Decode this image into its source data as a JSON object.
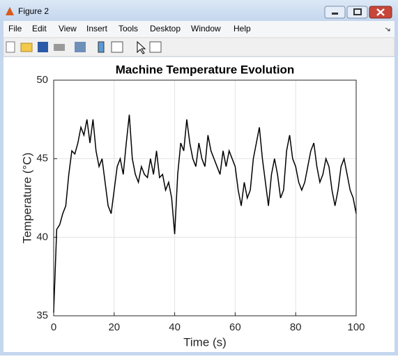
{
  "window": {
    "title": "Figure 2",
    "menu": [
      "File",
      "Edit",
      "View",
      "Insert",
      "Tools",
      "Desktop",
      "Window",
      "Help"
    ]
  },
  "chart_data": {
    "type": "line",
    "title": "Machine Temperature Evolution",
    "xlabel": "Time (s)",
    "ylabel": "Temperature (°C)",
    "x": [
      0,
      1,
      2,
      3,
      4,
      5,
      6,
      7,
      8,
      9,
      10,
      11,
      12,
      13,
      14,
      15,
      16,
      17,
      18,
      19,
      20,
      21,
      22,
      23,
      24,
      25,
      26,
      27,
      28,
      29,
      30,
      31,
      32,
      33,
      34,
      35,
      36,
      37,
      38,
      39,
      40,
      41,
      42,
      43,
      44,
      45,
      46,
      47,
      48,
      49,
      50,
      51,
      52,
      53,
      54,
      55,
      56,
      57,
      58,
      59,
      60,
      61,
      62,
      63,
      64,
      65,
      66,
      67,
      68,
      69,
      70,
      71,
      72,
      73,
      74,
      75,
      76,
      77,
      78,
      79,
      80,
      81,
      82,
      83,
      84,
      85,
      86,
      87,
      88,
      89,
      90,
      91,
      92,
      93,
      94,
      95,
      96,
      97,
      98,
      99,
      100
    ],
    "values": [
      35.2,
      40.5,
      40.8,
      41.5,
      42,
      44,
      45.5,
      45.3,
      46,
      47,
      46.5,
      47.5,
      46,
      47.5,
      45.5,
      44.5,
      45,
      43.5,
      42,
      41.5,
      43,
      44.5,
      45,
      44,
      46,
      47.8,
      45,
      44,
      43.5,
      44.5,
      44,
      43.8,
      45,
      44,
      45.5,
      43.8,
      44,
      43,
      43.5,
      42.5,
      40.2,
      44,
      46,
      45.5,
      47.5,
      46,
      45,
      44.5,
      46,
      45,
      44.5,
      46.5,
      45.5,
      45,
      44.5,
      44,
      45.5,
      44.5,
      45.5,
      45,
      44.5,
      43,
      42,
      43.5,
      42.5,
      43,
      45,
      46,
      47,
      45,
      43.5,
      42,
      44,
      45,
      44,
      42.5,
      43,
      45.5,
      46.5,
      45,
      44.5,
      43.5,
      43,
      43.5,
      44.5,
      45.5,
      46,
      44.5,
      43.5,
      44,
      45,
      44.5,
      43,
      42,
      43,
      44.5,
      45,
      44,
      43,
      42.5,
      41.5
    ],
    "color": "#000000",
    "xlim": [
      0,
      100
    ],
    "ylim": [
      35,
      50
    ],
    "xticks": [
      0,
      20,
      40,
      60,
      80,
      100
    ],
    "yticks": [
      35,
      40,
      45,
      50
    ],
    "grid": true
  }
}
